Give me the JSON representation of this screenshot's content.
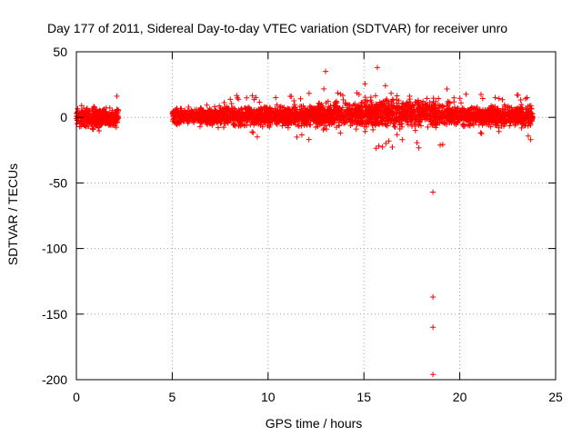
{
  "chart_data": {
    "type": "scatter",
    "title": "Day 177 of 2011, Sidereal Day-to-day VTEC variation (SDTVAR) for receiver unro",
    "xlabel": "GPS time / hours",
    "ylabel": "SDTVAR / TECUs",
    "xlim": [
      0,
      25
    ],
    "ylim": [
      -200,
      50
    ],
    "xticks": [
      0,
      5,
      10,
      15,
      20,
      25
    ],
    "yticks": [
      50,
      0,
      -50,
      -100,
      -150,
      -200
    ],
    "grid": true,
    "marker": "+",
    "color": "#ff0000",
    "clusters": [
      {
        "x_range": [
          0.0,
          2.2
        ],
        "center": 0,
        "spread": 5,
        "extreme": 17
      },
      {
        "x_range": [
          5.0,
          7.5
        ],
        "center": 1,
        "spread": 4,
        "extreme": 10
      },
      {
        "x_range": [
          7.5,
          12.0
        ],
        "center": 1,
        "spread": 5,
        "extreme": 16
      },
      {
        "x_range": [
          12.0,
          15.0
        ],
        "center": 2,
        "spread": 6,
        "extreme": 20
      },
      {
        "x_range": [
          15.0,
          19.5
        ],
        "center": 3,
        "spread": 7,
        "extreme": 28
      },
      {
        "x_range": [
          19.5,
          23.8
        ],
        "center": 1,
        "spread": 5,
        "extreme": 17
      }
    ],
    "outliers": [
      {
        "x": 13.0,
        "y": 35
      },
      {
        "x": 15.7,
        "y": 38
      },
      {
        "x": 18.6,
        "y": -57
      },
      {
        "x": 18.6,
        "y": -137
      },
      {
        "x": 18.6,
        "y": -160
      },
      {
        "x": 18.6,
        "y": -196
      },
      {
        "x": 10.4,
        "y": 15
      },
      {
        "x": 11.5,
        "y": -15
      },
      {
        "x": 16.3,
        "y": -18
      },
      {
        "x": 17.0,
        "y": -17
      },
      {
        "x": 23.7,
        "y": -17
      }
    ]
  }
}
